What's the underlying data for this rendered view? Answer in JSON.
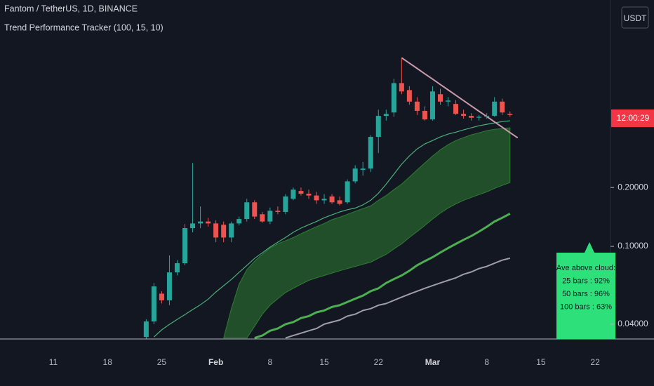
{
  "chart_data": {
    "type": "candlestick",
    "title": "Fantom / TetherUS, 1D, BINANCE",
    "subtitle": "Trend Performance Tracker (100, 15, 10)",
    "currency": "USDT",
    "countdown": "12:00:29",
    "log_scale": true,
    "ylim": [
      0.0336,
      1.82
    ],
    "yticks": [
      {
        "value": 0.04,
        "label": "0.04000"
      },
      {
        "value": 0.1,
        "label": "0.10000"
      },
      {
        "value": 0.2,
        "label": "0.20000"
      }
    ],
    "up_color": "#26a69a",
    "down_color": "#ef5350",
    "categories": [
      "11",
      null,
      null,
      null,
      null,
      null,
      null,
      "18",
      null,
      null,
      null,
      null,
      null,
      null,
      "25",
      null,
      null,
      null,
      null,
      null,
      null,
      "Feb",
      null,
      null,
      null,
      null,
      null,
      null,
      "8",
      null,
      null,
      null,
      null,
      null,
      null,
      "15",
      null,
      null,
      null,
      null,
      null,
      null,
      "22",
      null,
      null,
      null,
      null,
      null,
      null,
      "Mar",
      null,
      null,
      null,
      null,
      null,
      null,
      "8",
      null,
      null,
      null,
      null,
      null,
      null,
      "15",
      null,
      null,
      null,
      null,
      null,
      null,
      "22"
    ],
    "open": [
      null,
      null,
      null,
      null,
      null,
      null,
      null,
      null,
      null,
      null,
      null,
      null,
      0.0344,
      0.0413,
      0.0573,
      0.053,
      0.0736,
      0.082,
      0.124,
      0.131,
      0.134,
      0.131,
      0.129,
      0.111,
      0.131,
      0.138,
      0.168,
      0.146,
      0.134,
      0.152,
      0.15,
      0.175,
      0.192,
      0.186,
      0.182,
      0.172,
      0.18,
      0.172,
      0.168,
      0.215,
      0.246,
      0.25,
      0.363,
      0.465,
      0.484,
      0.684,
      0.63,
      0.55,
      0.493,
      0.446,
      0.6,
      0.55,
      0.535,
      0.476,
      0.465,
      0.455,
      0.46,
      0.465,
      0.55,
      0.476,
      null,
      null,
      null,
      null,
      null,
      null,
      null,
      null,
      null,
      null,
      null
    ],
    "high": [
      null,
      null,
      null,
      null,
      null,
      null,
      null,
      null,
      null,
      null,
      null,
      null,
      0.0424,
      0.065,
      0.059,
      0.09,
      0.085,
      0.13,
      0.267,
      0.16,
      0.14,
      0.136,
      0.134,
      0.134,
      0.142,
      0.175,
      0.172,
      0.15,
      0.158,
      0.16,
      0.185,
      0.2,
      0.2,
      0.195,
      0.19,
      0.185,
      0.185,
      0.18,
      0.22,
      0.26,
      0.27,
      0.37,
      0.5,
      0.5,
      0.72,
      0.922,
      0.66,
      0.58,
      0.52,
      0.66,
      0.64,
      0.58,
      0.56,
      0.5,
      0.48,
      0.47,
      0.48,
      0.58,
      0.57,
      0.49,
      null,
      null,
      null,
      null,
      null,
      null,
      null,
      null,
      null,
      null,
      null
    ],
    "low": [
      null,
      null,
      null,
      null,
      null,
      null,
      null,
      null,
      null,
      null,
      null,
      null,
      0.0336,
      0.04,
      0.051,
      0.05,
      0.071,
      0.08,
      0.118,
      0.124,
      0.126,
      0.105,
      0.105,
      0.105,
      0.128,
      0.134,
      0.138,
      0.132,
      0.13,
      0.146,
      0.146,
      0.172,
      0.182,
      0.175,
      0.165,
      0.165,
      0.165,
      0.162,
      0.165,
      0.21,
      0.23,
      0.24,
      0.3,
      0.44,
      0.46,
      0.6,
      0.53,
      0.47,
      0.44,
      0.44,
      0.53,
      0.52,
      0.47,
      0.45,
      0.44,
      0.44,
      0.45,
      0.46,
      0.47,
      0.46,
      null,
      null,
      null,
      null,
      null,
      null,
      null,
      null,
      null,
      null,
      null
    ],
    "close": [
      null,
      null,
      null,
      null,
      null,
      null,
      null,
      null,
      null,
      null,
      null,
      null,
      0.0413,
      0.0624,
      0.053,
      0.0736,
      0.082,
      0.124,
      0.131,
      0.134,
      0.131,
      0.111,
      0.111,
      0.131,
      0.138,
      0.168,
      0.142,
      0.134,
      0.152,
      0.15,
      0.18,
      0.195,
      0.186,
      0.182,
      0.172,
      0.175,
      0.168,
      0.165,
      0.215,
      0.25,
      0.25,
      0.363,
      0.465,
      0.476,
      0.684,
      0.62,
      0.55,
      0.493,
      0.446,
      0.62,
      0.55,
      0.557,
      0.476,
      0.465,
      0.455,
      0.46,
      0.465,
      0.55,
      0.484,
      0.47,
      null,
      null,
      null,
      null,
      null,
      null,
      null,
      null,
      null,
      null,
      null
    ],
    "band": {
      "color": "#2e7d32",
      "upper": [
        null,
        null,
        null,
        null,
        null,
        null,
        null,
        null,
        null,
        null,
        null,
        null,
        null,
        null,
        null,
        null,
        null,
        null,
        null,
        null,
        null,
        null,
        0.034,
        0.048,
        0.064,
        0.076,
        0.084,
        0.091,
        0.098,
        0.103,
        0.107,
        0.111,
        0.116,
        0.121,
        0.126,
        0.131,
        0.137,
        0.141,
        0.146,
        0.151,
        0.156,
        0.161,
        0.172,
        0.182,
        0.195,
        0.208,
        0.226,
        0.246,
        0.267,
        0.29,
        0.312,
        0.331,
        0.348,
        0.36,
        0.372,
        0.381,
        0.391,
        0.397,
        0.4,
        0.404,
        null,
        null,
        null,
        null,
        null,
        null,
        null,
        null,
        null,
        null,
        null
      ],
      "lower": [
        null,
        null,
        null,
        null,
        null,
        null,
        null,
        null,
        null,
        null,
        null,
        null,
        null,
        null,
        null,
        null,
        null,
        null,
        null,
        null,
        null,
        null,
        null,
        null,
        null,
        0.034,
        0.039,
        0.045,
        0.05,
        0.054,
        0.058,
        0.061,
        0.064,
        0.067,
        0.069,
        0.071,
        0.073,
        0.075,
        0.077,
        0.079,
        0.081,
        0.083,
        0.087,
        0.091,
        0.097,
        0.103,
        0.111,
        0.119,
        0.128,
        0.138,
        0.148,
        0.157,
        0.165,
        0.172,
        0.178,
        0.184,
        0.19,
        0.198,
        0.205,
        0.212,
        null,
        null,
        null,
        null,
        null,
        null,
        null,
        null,
        null,
        null,
        null
      ]
    },
    "series": [
      {
        "color": "#4caf7a",
        "line_width": 1.2,
        "values": [
          null,
          null,
          null,
          null,
          null,
          null,
          null,
          null,
          null,
          null,
          null,
          null,
          null,
          0.0344,
          0.0374,
          0.0399,
          0.0423,
          0.0448,
          0.0475,
          0.0503,
          0.0537,
          0.0584,
          0.0629,
          0.0677,
          0.0736,
          0.0799,
          0.0868,
          0.0927,
          0.0991,
          0.105,
          0.111,
          0.118,
          0.124,
          0.129,
          0.134,
          0.14,
          0.145,
          0.15,
          0.154,
          0.157,
          0.163,
          0.172,
          0.187,
          0.208,
          0.234,
          0.263,
          0.29,
          0.315,
          0.334,
          0.348,
          0.363,
          0.375,
          0.384,
          0.394,
          0.404,
          0.414,
          0.421,
          0.428,
          0.435,
          0.439,
          null,
          null,
          null,
          null,
          null,
          null,
          null,
          null,
          null,
          null,
          null
        ]
      },
      {
        "color": "#4caf50",
        "line_width": 3,
        "values": [
          null,
          null,
          null,
          null,
          null,
          null,
          null,
          null,
          null,
          null,
          null,
          null,
          null,
          null,
          null,
          null,
          null,
          null,
          null,
          null,
          null,
          null,
          null,
          null,
          null,
          null,
          0.034,
          0.035,
          0.037,
          0.038,
          0.04,
          0.041,
          0.043,
          0.044,
          0.046,
          0.047,
          0.049,
          0.05,
          0.052,
          0.054,
          0.056,
          0.059,
          0.061,
          0.065,
          0.068,
          0.071,
          0.075,
          0.08,
          0.084,
          0.088,
          0.093,
          0.098,
          0.103,
          0.108,
          0.113,
          0.119,
          0.126,
          0.134,
          0.14,
          0.147,
          null,
          null,
          null,
          null,
          null,
          null,
          null,
          null,
          null,
          null,
          null
        ]
      },
      {
        "color": "#9e9ea8",
        "line_width": 2,
        "values": [
          null,
          null,
          null,
          null,
          null,
          null,
          null,
          null,
          null,
          null,
          null,
          null,
          null,
          null,
          null,
          null,
          null,
          null,
          null,
          null,
          null,
          null,
          null,
          null,
          null,
          null,
          null,
          null,
          null,
          null,
          0.034,
          0.035,
          0.036,
          0.037,
          0.038,
          0.04,
          0.041,
          0.042,
          0.044,
          0.045,
          0.047,
          0.048,
          0.05,
          0.051,
          0.053,
          0.055,
          0.057,
          0.059,
          0.061,
          0.063,
          0.065,
          0.067,
          0.069,
          0.072,
          0.074,
          0.077,
          0.079,
          0.082,
          0.085,
          0.087,
          null,
          null,
          null,
          null,
          null,
          null,
          null,
          null,
          null,
          null,
          null
        ]
      },
      {
        "color": "#c99aab",
        "line_width": 2,
        "values": [
          null,
          null,
          null,
          null,
          null,
          null,
          null,
          null,
          null,
          null,
          null,
          null,
          null,
          null,
          null,
          null,
          null,
          null,
          null,
          null,
          null,
          null,
          null,
          null,
          null,
          null,
          null,
          null,
          null,
          null,
          null,
          null,
          null,
          null,
          null,
          null,
          null,
          null,
          null,
          null,
          null,
          null,
          null,
          null,
          null,
          0.922,
          0.866,
          0.813,
          0.763,
          0.717,
          0.673,
          0.632,
          0.593,
          0.557,
          0.523,
          0.491,
          0.461,
          0.433,
          0.407,
          0.382,
          0.359,
          null,
          null,
          null,
          null,
          null,
          null,
          null,
          null,
          null,
          null
        ]
      }
    ],
    "info_box": {
      "color": "#2ee07a",
      "lines": [
        "Ave above cloud:",
        "25 bars : 92%",
        "50 bars : 96%",
        "100 bars : 63%"
      ]
    }
  }
}
